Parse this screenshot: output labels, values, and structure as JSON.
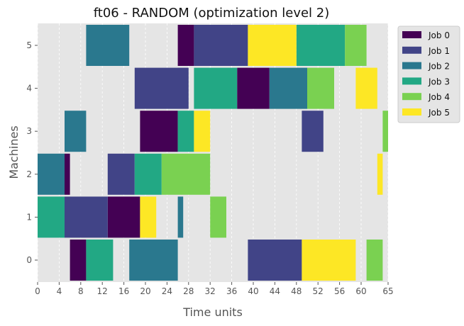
{
  "chart_data": {
    "type": "gantt",
    "title": "ft06 - RANDOM (optimization level 2)",
    "xlabel": "Time units",
    "ylabel": "Machines",
    "xlim": [
      0,
      65
    ],
    "x_ticks": [
      0,
      4,
      8,
      12,
      16,
      20,
      24,
      28,
      32,
      36,
      40,
      44,
      48,
      52,
      56,
      60,
      65
    ],
    "y_ticks": [
      0,
      1,
      2,
      3,
      4,
      5
    ],
    "grid": true,
    "legend_position": "outside-top-right",
    "series": [
      {
        "name": "Job 0",
        "color": "#440154",
        "tasks": [
          {
            "machine": 0,
            "start": 6,
            "end": 9
          },
          {
            "machine": 1,
            "start": 13,
            "end": 19
          },
          {
            "machine": 2,
            "start": 5,
            "end": 6
          },
          {
            "machine": 3,
            "start": 19,
            "end": 26
          },
          {
            "machine": 4,
            "start": 37,
            "end": 43
          },
          {
            "machine": 5,
            "start": 26,
            "end": 29
          }
        ]
      },
      {
        "name": "Job 1",
        "color": "#414487",
        "tasks": [
          {
            "machine": 0,
            "start": 39,
            "end": 49
          },
          {
            "machine": 1,
            "start": 5,
            "end": 13
          },
          {
            "machine": 2,
            "start": 13,
            "end": 18
          },
          {
            "machine": 3,
            "start": 49,
            "end": 53
          },
          {
            "machine": 4,
            "start": 18,
            "end": 28
          },
          {
            "machine": 5,
            "start": 29,
            "end": 39
          }
        ]
      },
      {
        "name": "Job 2",
        "color": "#2a788e",
        "tasks": [
          {
            "machine": 0,
            "start": 17,
            "end": 26
          },
          {
            "machine": 1,
            "start": 26,
            "end": 27
          },
          {
            "machine": 2,
            "start": 0,
            "end": 5
          },
          {
            "machine": 3,
            "start": 5,
            "end": 9
          },
          {
            "machine": 4,
            "start": 43,
            "end": 50
          },
          {
            "machine": 5,
            "start": 9,
            "end": 17
          }
        ]
      },
      {
        "name": "Job 3",
        "color": "#22a884",
        "tasks": [
          {
            "machine": 0,
            "start": 9,
            "end": 14
          },
          {
            "machine": 1,
            "start": 0,
            "end": 5
          },
          {
            "machine": 2,
            "start": 18,
            "end": 23
          },
          {
            "machine": 3,
            "start": 26,
            "end": 29
          },
          {
            "machine": 4,
            "start": 29,
            "end": 37
          },
          {
            "machine": 5,
            "start": 48,
            "end": 57
          }
        ]
      },
      {
        "name": "Job 4",
        "color": "#7ad151",
        "tasks": [
          {
            "machine": 0,
            "start": 61,
            "end": 64
          },
          {
            "machine": 1,
            "start": 32,
            "end": 35
          },
          {
            "machine": 2,
            "start": 23,
            "end": 32
          },
          {
            "machine": 3,
            "start": 64,
            "end": 65
          },
          {
            "machine": 4,
            "start": 50,
            "end": 55
          },
          {
            "machine": 5,
            "start": 57,
            "end": 61
          }
        ]
      },
      {
        "name": "Job 5",
        "color": "#fde725",
        "tasks": [
          {
            "machine": 0,
            "start": 49,
            "end": 59
          },
          {
            "machine": 1,
            "start": 19,
            "end": 22
          },
          {
            "machine": 2,
            "start": 63,
            "end": 64
          },
          {
            "machine": 3,
            "start": 29,
            "end": 32
          },
          {
            "machine": 4,
            "start": 59,
            "end": 63
          },
          {
            "machine": 5,
            "start": 39,
            "end": 48
          }
        ]
      }
    ]
  }
}
